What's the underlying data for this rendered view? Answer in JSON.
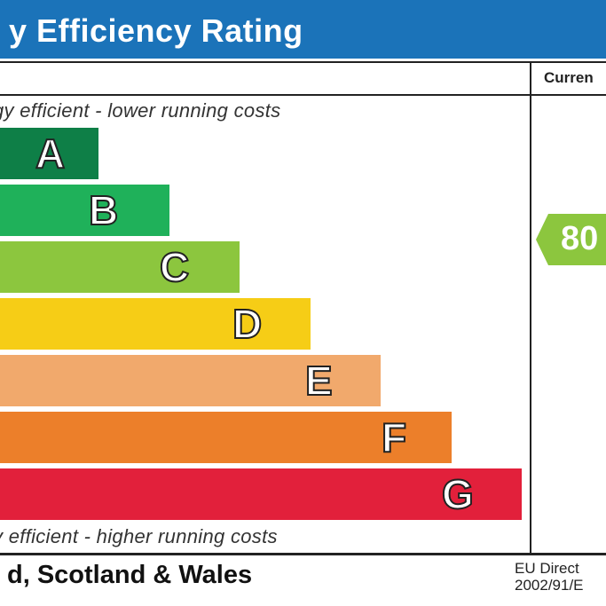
{
  "header": {
    "title": "y Efficiency Rating"
  },
  "table": {
    "current_header": "Curren"
  },
  "captions": {
    "top": "gy efficient - lower running costs",
    "bottom": "y efficient - higher running costs"
  },
  "bands": [
    {
      "letter": "A",
      "color": "#0e7f47"
    },
    {
      "letter": "B",
      "color": "#1fb15a"
    },
    {
      "letter": "C",
      "color": "#8cc63e"
    },
    {
      "letter": "D",
      "color": "#f6cd16"
    },
    {
      "letter": "E",
      "color": "#f1a96c"
    },
    {
      "letter": "F",
      "color": "#ec7f2a"
    },
    {
      "letter": "G",
      "color": "#e2203b"
    }
  ],
  "current_rating": {
    "value": "80",
    "color": "#8cc63e"
  },
  "footer": {
    "region": "d, Scotland & Wales",
    "directive_line1": "EU Direct",
    "directive_line2": "2002/91/E"
  }
}
